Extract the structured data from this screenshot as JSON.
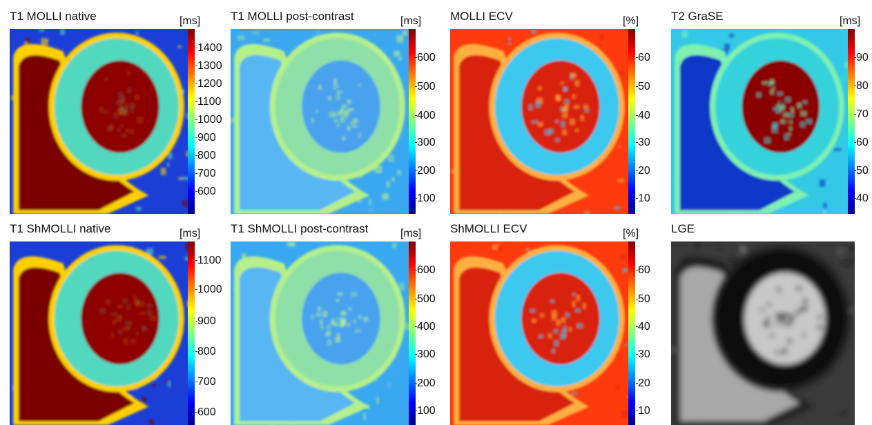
{
  "colormaps": {
    "jet": [
      "#00008f",
      "#0000ff",
      "#0080ff",
      "#00ffff",
      "#80ff80",
      "#ffff00",
      "#ff8000",
      "#ff0000",
      "#800000"
    ]
  },
  "panels": [
    {
      "id": "t1-molli-native",
      "title": "T1 MOLLI native",
      "unit": "[ms]",
      "ticks": [
        "1400",
        "1300",
        "1200",
        "1100",
        "1000",
        "900",
        "800",
        "700",
        "600"
      ],
      "style": "native",
      "colors": {
        "bg": "#1b3fd6",
        "blood": "#8e0000",
        "wall": "#52d8c0",
        "ring": "#ffd000",
        "tissue": "#7a0000"
      }
    },
    {
      "id": "t1-molli-post",
      "title": "T1 MOLLI post-contrast",
      "unit": "[ms]",
      "ticks": [
        "600",
        "500",
        "400",
        "300",
        "200",
        "100"
      ],
      "style": "post",
      "colors": {
        "bg": "#3aa8f0",
        "blood": "#4aa2ee",
        "wall": "#8fe0a8",
        "ring": "#b6f08a",
        "tissue": "#58b6f2"
      }
    },
    {
      "id": "molli-ecv",
      "title": "MOLLI ECV",
      "unit": "[%]",
      "ticks": [
        "60",
        "50",
        "40",
        "30",
        "20",
        "10"
      ],
      "style": "ecv",
      "colors": {
        "bg": "#ff3a0c",
        "blood": "#d8200a",
        "wall": "#3ec8f0",
        "ring": "#ffb040",
        "tissue": "#d8240c"
      }
    },
    {
      "id": "t2-grase",
      "title": "T2 GraSE",
      "unit": "[ms]",
      "ticks": [
        "90",
        "80",
        "70",
        "60",
        "50",
        "40"
      ],
      "style": "t2",
      "colors": {
        "bg": "#32c8e6",
        "blood": "#8a0000",
        "wall": "#36d2dc",
        "ring": "#7ef0b0",
        "tissue": "#1038c8"
      }
    },
    {
      "id": "t1-shmolli-native",
      "title": "T1 ShMOLLI native",
      "unit": "[ms]",
      "ticks": [
        "1100",
        "1000",
        "900",
        "800",
        "700",
        "600"
      ],
      "style": "native",
      "colors": {
        "bg": "#1b3fd6",
        "blood": "#8e0000",
        "wall": "#52d8c0",
        "ring": "#ffd000",
        "tissue": "#7a0000"
      }
    },
    {
      "id": "t1-shmolli-post",
      "title": "T1 ShMOLLI post-contrast",
      "unit": "[ms]",
      "ticks": [
        "600",
        "500",
        "400",
        "300",
        "200",
        "100"
      ],
      "style": "post",
      "colors": {
        "bg": "#3aa8f0",
        "blood": "#4aa2ee",
        "wall": "#8fe0a8",
        "ring": "#b6f08a",
        "tissue": "#58b6f2"
      }
    },
    {
      "id": "shmolli-ecv",
      "title": "ShMOLLI ECV",
      "unit": "[%]",
      "ticks": [
        "60",
        "50",
        "40",
        "30",
        "20",
        "10"
      ],
      "style": "ecv",
      "colors": {
        "bg": "#ff3a0c",
        "blood": "#d8200a",
        "wall": "#3ec8f0",
        "ring": "#ffb040",
        "tissue": "#d8240c"
      }
    },
    {
      "id": "lge",
      "title": "LGE",
      "unit": "",
      "ticks": [],
      "style": "lge",
      "colors": {
        "bg": "#3a3a3a",
        "blood": "#c8c8c8",
        "wall": "#101010",
        "ring": "#202020",
        "tissue": "#a8a8a8"
      }
    }
  ]
}
